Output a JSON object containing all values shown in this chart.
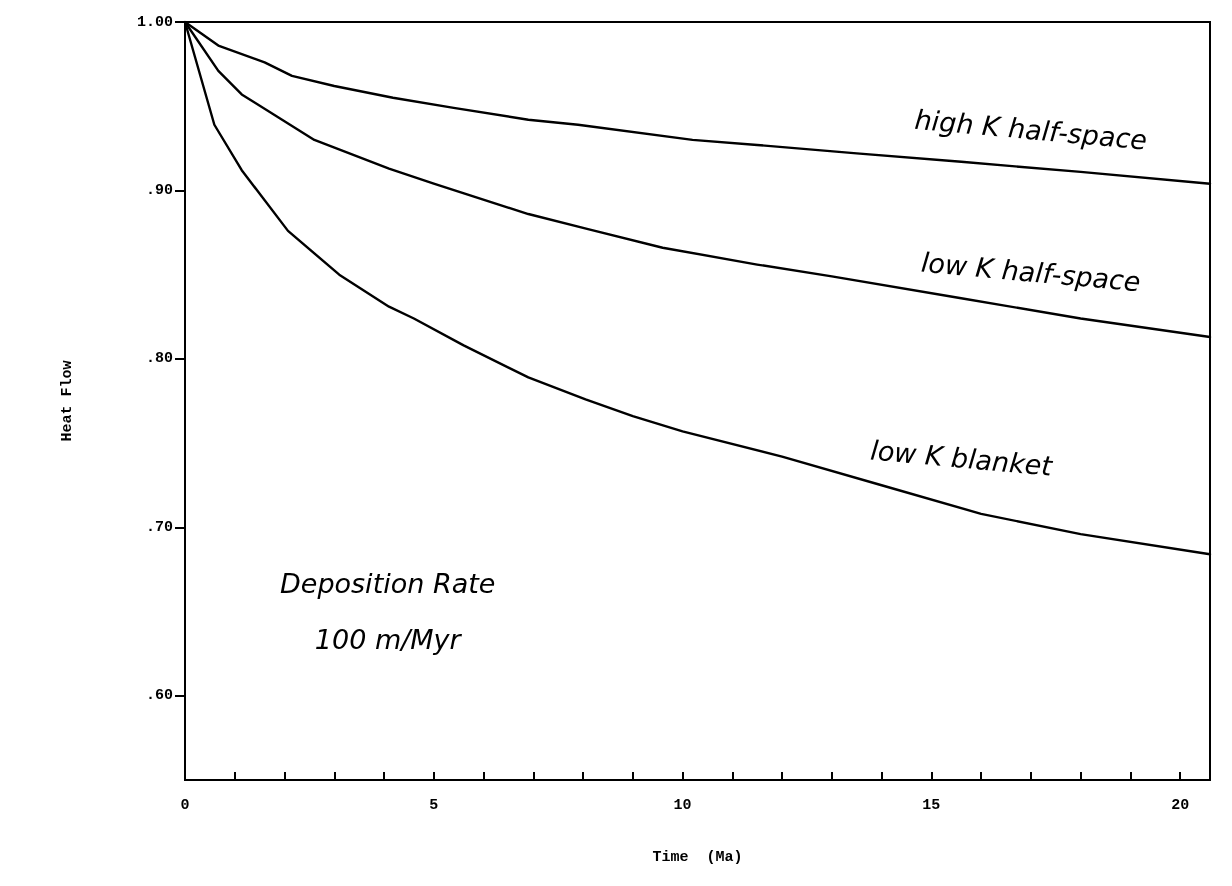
{
  "chart_data": {
    "type": "line",
    "xlabel": "Time  (Ma)",
    "ylabel": "Heat Flow",
    "xlim": [
      0,
      20.6
    ],
    "ylim": [
      0.55,
      1.0
    ],
    "xticks": [
      0,
      {
        "value": 1,
        "label": null
      },
      {
        "value": 2,
        "label": null
      },
      {
        "value": 3,
        "label": null
      },
      {
        "value": 4,
        "label": null
      },
      5,
      {
        "value": 6,
        "label": null
      },
      {
        "value": 7,
        "label": null
      },
      {
        "value": 8,
        "label": null
      },
      {
        "value": 9,
        "label": null
      },
      10,
      {
        "value": 11,
        "label": null
      },
      {
        "value": 12,
        "label": null
      },
      {
        "value": 13,
        "label": null
      },
      {
        "value": 14,
        "label": null
      },
      15,
      {
        "value": 16,
        "label": null
      },
      {
        "value": 17,
        "label": null
      },
      {
        "value": 18,
        "label": null
      },
      {
        "value": 19,
        "label": null
      },
      20
    ],
    "yticks": [
      {
        "value": 0.6,
        "label": ".60"
      },
      {
        "value": 0.7,
        "label": ".70"
      },
      {
        "value": 0.8,
        "label": ".80"
      },
      {
        "value": 0.9,
        "label": ".90"
      },
      {
        "value": 1.0,
        "label": "1.00"
      }
    ],
    "grid": false,
    "legend": false,
    "marker": "none",
    "line_style": "solid",
    "series": [
      {
        "name": "high K half-space",
        "color": "#000000",
        "x": [
          0,
          0.67,
          1.6,
          2.15,
          3.0,
          4.18,
          5.4,
          6.9,
          7.9,
          10.2,
          11.5,
          13.5,
          15.6,
          18,
          20.6
        ],
        "values": [
          1.0,
          0.986,
          0.976,
          0.968,
          0.962,
          0.955,
          0.949,
          0.942,
          0.939,
          0.93,
          0.927,
          0.922,
          0.917,
          0.911,
          0.904
        ]
      },
      {
        "name": "low K half-space",
        "color": "#000000",
        "x": [
          0,
          0.67,
          1.14,
          2.6,
          4.1,
          5.0,
          6.9,
          8.1,
          9.6,
          11.5,
          13,
          15.6,
          18,
          20.6
        ],
        "values": [
          1.0,
          0.971,
          0.957,
          0.93,
          0.913,
          0.904,
          0.886,
          0.877,
          0.866,
          0.856,
          0.849,
          0.836,
          0.824,
          0.813
        ]
      },
      {
        "name": "low K blanket",
        "color": "#000000",
        "x": [
          0,
          0.59,
          1.14,
          2.07,
          3.1,
          4.1,
          4.6,
          5.6,
          6.9,
          8.05,
          9,
          10,
          12,
          14,
          16,
          18,
          20.6
        ],
        "values": [
          1.0,
          0.939,
          0.912,
          0.876,
          0.85,
          0.831,
          0.824,
          0.808,
          0.789,
          0.776,
          0.766,
          0.757,
          0.742,
          0.725,
          0.708,
          0.696,
          0.684
        ]
      }
    ],
    "annotations": [
      "Deposition Rate\n100 m/Myr"
    ]
  }
}
